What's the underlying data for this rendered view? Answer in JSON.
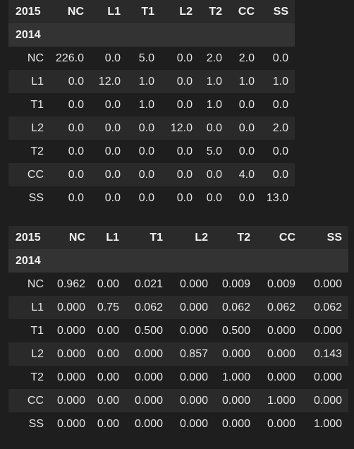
{
  "tables": [
    {
      "corner_label": "2015",
      "index_name": "2014",
      "columns": [
        "NC",
        "L1",
        "T1",
        "L2",
        "T2",
        "CC",
        "SS"
      ],
      "rows": [
        {
          "label": "NC",
          "values": [
            "226.0",
            "0.0",
            "5.0",
            "0.0",
            "2.0",
            "2.0",
            "0.0"
          ]
        },
        {
          "label": "L1",
          "values": [
            "0.0",
            "12.0",
            "1.0",
            "0.0",
            "1.0",
            "1.0",
            "1.0"
          ]
        },
        {
          "label": "T1",
          "values": [
            "0.0",
            "0.0",
            "1.0",
            "0.0",
            "1.0",
            "0.0",
            "0.0"
          ]
        },
        {
          "label": "L2",
          "values": [
            "0.0",
            "0.0",
            "0.0",
            "12.0",
            "0.0",
            "0.0",
            "2.0"
          ]
        },
        {
          "label": "T2",
          "values": [
            "0.0",
            "0.0",
            "0.0",
            "0.0",
            "5.0",
            "0.0",
            "0.0"
          ]
        },
        {
          "label": "CC",
          "values": [
            "0.0",
            "0.0",
            "0.0",
            "0.0",
            "0.0",
            "4.0",
            "0.0"
          ]
        },
        {
          "label": "SS",
          "values": [
            "0.0",
            "0.0",
            "0.0",
            "0.0",
            "0.0",
            "0.0",
            "13.0"
          ]
        }
      ]
    },
    {
      "corner_label": "2015",
      "index_name": "2014",
      "columns": [
        "NC",
        "L1",
        "T1",
        "L2",
        "T2",
        "CC",
        "SS"
      ],
      "rows": [
        {
          "label": "NC",
          "values": [
            "0.962",
            "0.00",
            "0.021",
            "0.000",
            "0.009",
            "0.009",
            "0.000"
          ]
        },
        {
          "label": "L1",
          "values": [
            "0.000",
            "0.75",
            "0.062",
            "0.000",
            "0.062",
            "0.062",
            "0.062"
          ]
        },
        {
          "label": "T1",
          "values": [
            "0.000",
            "0.00",
            "0.500",
            "0.000",
            "0.500",
            "0.000",
            "0.000"
          ]
        },
        {
          "label": "L2",
          "values": [
            "0.000",
            "0.00",
            "0.000",
            "0.857",
            "0.000",
            "0.000",
            "0.143"
          ]
        },
        {
          "label": "T2",
          "values": [
            "0.000",
            "0.00",
            "0.000",
            "0.000",
            "1.000",
            "0.000",
            "0.000"
          ]
        },
        {
          "label": "CC",
          "values": [
            "0.000",
            "0.00",
            "0.000",
            "0.000",
            "0.000",
            "1.000",
            "0.000"
          ]
        },
        {
          "label": "SS",
          "values": [
            "0.000",
            "0.00",
            "0.000",
            "0.000",
            "0.000",
            "0.000",
            "1.000"
          ]
        }
      ]
    }
  ]
}
